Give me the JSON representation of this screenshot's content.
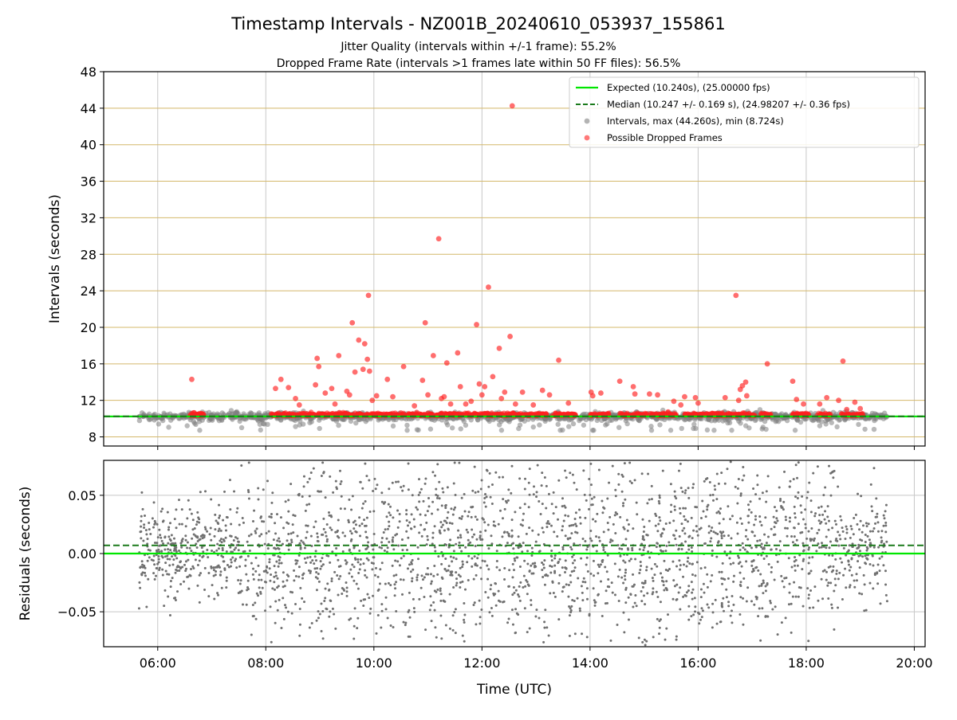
{
  "chart_data": [
    {
      "type": "scatter",
      "title": "Timestamp Intervals - NZ001B_20240610_053937_155861",
      "subtitle_lines": [
        "Jitter Quality (intervals within +/-1 frame): 55.2%",
        "Dropped Frame Rate (intervals >1 frames late within 50 FF files): 56.5%"
      ],
      "xlabel": "",
      "ylabel": "Intervals (seconds)",
      "x_unit": "hours UTC",
      "xlim": [
        5.0,
        20.2
      ],
      "ylim": [
        7.0,
        48.0
      ],
      "y_ticks": [
        8,
        12,
        16,
        20,
        24,
        28,
        32,
        36,
        40,
        44,
        48
      ],
      "y_tick_labels": [
        "8",
        "12",
        "16",
        "20",
        "24",
        "28",
        "32",
        "36",
        "40",
        "44",
        "48"
      ],
      "x_ticks": [
        6,
        8,
        10,
        12,
        14,
        16,
        18,
        20
      ],
      "horizontal_grid_color": "#d4b86a",
      "vertical_grid_color": "#c8c8c8",
      "legend_position": "top-right",
      "legend": [
        {
          "label": "Expected (10.240s), (25.00000 fps)",
          "style": "solid-line",
          "color": "#00e600"
        },
        {
          "label": "Median (10.247 +/- 0.169 s), (24.98207 +/- 0.36 fps)",
          "style": "dashed-line",
          "color": "#1a7a1a"
        },
        {
          "label": "Intervals, max (44.260s), min (8.724s)",
          "style": "marker",
          "color": "#808080"
        },
        {
          "label": "Possible Dropped Frames",
          "style": "marker",
          "color": "#ff2020"
        }
      ],
      "expected_interval": 10.24,
      "median_interval": 10.247,
      "series": [
        {
          "name": "Possible Dropped Frames",
          "color": "#ff2020",
          "points": [
            [
              6.63,
              14.3
            ],
            [
              8.18,
              13.3
            ],
            [
              8.28,
              14.3
            ],
            [
              8.42,
              13.4
            ],
            [
              8.55,
              12.2
            ],
            [
              8.62,
              11.5
            ],
            [
              8.95,
              16.6
            ],
            [
              8.98,
              15.7
            ],
            [
              8.92,
              13.7
            ],
            [
              9.1,
              12.8
            ],
            [
              9.22,
              13.3
            ],
            [
              9.28,
              11.6
            ],
            [
              9.35,
              16.9
            ],
            [
              9.5,
              13.0
            ],
            [
              9.55,
              12.6
            ],
            [
              9.6,
              20.5
            ],
            [
              9.65,
              15.1
            ],
            [
              9.72,
              18.6
            ],
            [
              9.8,
              15.4
            ],
            [
              9.83,
              18.2
            ],
            [
              9.9,
              23.5
            ],
            [
              9.88,
              16.5
            ],
            [
              9.92,
              15.2
            ],
            [
              9.97,
              12.0
            ],
            [
              10.05,
              12.5
            ],
            [
              10.25,
              14.3
            ],
            [
              10.35,
              12.4
            ],
            [
              10.55,
              15.7
            ],
            [
              10.75,
              11.4
            ],
            [
              10.9,
              14.2
            ],
            [
              10.95,
              20.5
            ],
            [
              11.0,
              12.6
            ],
            [
              11.1,
              16.9
            ],
            [
              11.2,
              29.7
            ],
            [
              11.25,
              12.2
            ],
            [
              11.3,
              12.4
            ],
            [
              11.35,
              16.1
            ],
            [
              11.42,
              11.6
            ],
            [
              11.55,
              17.2
            ],
            [
              11.6,
              13.5
            ],
            [
              11.7,
              11.6
            ],
            [
              11.8,
              11.9
            ],
            [
              11.9,
              20.3
            ],
            [
              11.95,
              13.8
            ],
            [
              12.0,
              12.6
            ],
            [
              12.05,
              13.5
            ],
            [
              12.12,
              24.4
            ],
            [
              12.2,
              14.6
            ],
            [
              12.32,
              17.7
            ],
            [
              12.36,
              12.2
            ],
            [
              12.42,
              12.9
            ],
            [
              12.52,
              19.0
            ],
            [
              12.56,
              44.26
            ],
            [
              12.62,
              11.6
            ],
            [
              12.75,
              12.9
            ],
            [
              12.95,
              11.5
            ],
            [
              13.12,
              13.1
            ],
            [
              13.25,
              12.6
            ],
            [
              13.42,
              16.4
            ],
            [
              13.6,
              11.7
            ],
            [
              14.02,
              12.9
            ],
            [
              14.05,
              12.5
            ],
            [
              14.2,
              12.8
            ],
            [
              14.55,
              14.1
            ],
            [
              14.8,
              13.5
            ],
            [
              14.83,
              12.7
            ],
            [
              15.1,
              12.7
            ],
            [
              15.25,
              12.6
            ],
            [
              15.55,
              11.9
            ],
            [
              15.68,
              11.5
            ],
            [
              15.75,
              12.4
            ],
            [
              15.95,
              12.3
            ],
            [
              16.0,
              11.7
            ],
            [
              16.5,
              12.3
            ],
            [
              16.7,
              23.5
            ],
            [
              16.75,
              12.0
            ],
            [
              16.78,
              13.2
            ],
            [
              16.82,
              13.6
            ],
            [
              16.88,
              14.0
            ],
            [
              16.9,
              12.5
            ],
            [
              17.28,
              16.0
            ],
            [
              17.75,
              14.1
            ],
            [
              17.82,
              12.1
            ],
            [
              17.95,
              11.6
            ],
            [
              18.25,
              11.6
            ],
            [
              18.38,
              12.3
            ],
            [
              18.6,
              12.0
            ],
            [
              18.68,
              16.3
            ],
            [
              18.75,
              11.0
            ],
            [
              18.9,
              11.8
            ],
            [
              19.0,
              11.1
            ]
          ]
        }
      ]
    },
    {
      "type": "scatter",
      "title": "",
      "xlabel": "Time (UTC)",
      "ylabel": "Residuals (seconds)",
      "xlim": [
        5.0,
        20.2
      ],
      "ylim": [
        -0.08,
        0.08
      ],
      "y_ticks": [
        -0.05,
        0.0,
        0.05
      ],
      "y_tick_labels": [
        "−0.05",
        "0.00",
        "0.05"
      ],
      "x_ticks": [
        6,
        8,
        10,
        12,
        14,
        16,
        18,
        20
      ],
      "x_tick_labels": [
        "06:00",
        "08:00",
        "10:00",
        "12:00",
        "14:00",
        "16:00",
        "18:00",
        "20:00"
      ],
      "grid": true,
      "expected_residual": 0.0,
      "median_residual": 0.007,
      "points_color": "#707070"
    }
  ]
}
